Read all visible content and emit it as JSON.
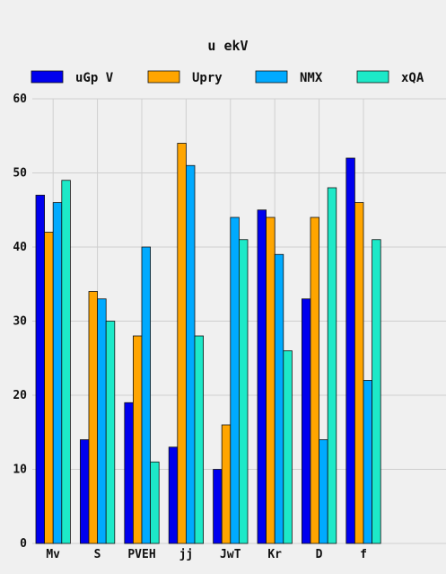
{
  "chart_data": {
    "type": "bar",
    "title": "u ekV",
    "xlabel": "",
    "ylabel": "",
    "categories": [
      "Mv",
      "S",
      "PVEH",
      "jj",
      "JwT",
      "Kr",
      "D",
      "f"
    ],
    "series": [
      {
        "name": "uGp V",
        "color": "#0000ee",
        "values": [
          47,
          14,
          19,
          13,
          10,
          45,
          33,
          52
        ]
      },
      {
        "name": "Upry",
        "color": "#ffa500",
        "values": [
          42,
          34,
          28,
          54,
          16,
          44,
          44,
          46
        ]
      },
      {
        "name": "NMX",
        "color": "#00aaff",
        "values": [
          46,
          33,
          40,
          51,
          44,
          39,
          14,
          22
        ]
      },
      {
        "name": "xQA",
        "color": "#1de9c8",
        "values": [
          49,
          30,
          11,
          28,
          41,
          26,
          48,
          41
        ]
      }
    ],
    "ylim": [
      0,
      60
    ],
    "yticks": [
      0,
      10,
      20,
      30,
      40,
      50,
      60
    ],
    "grid": true,
    "legend_position": "top"
  }
}
